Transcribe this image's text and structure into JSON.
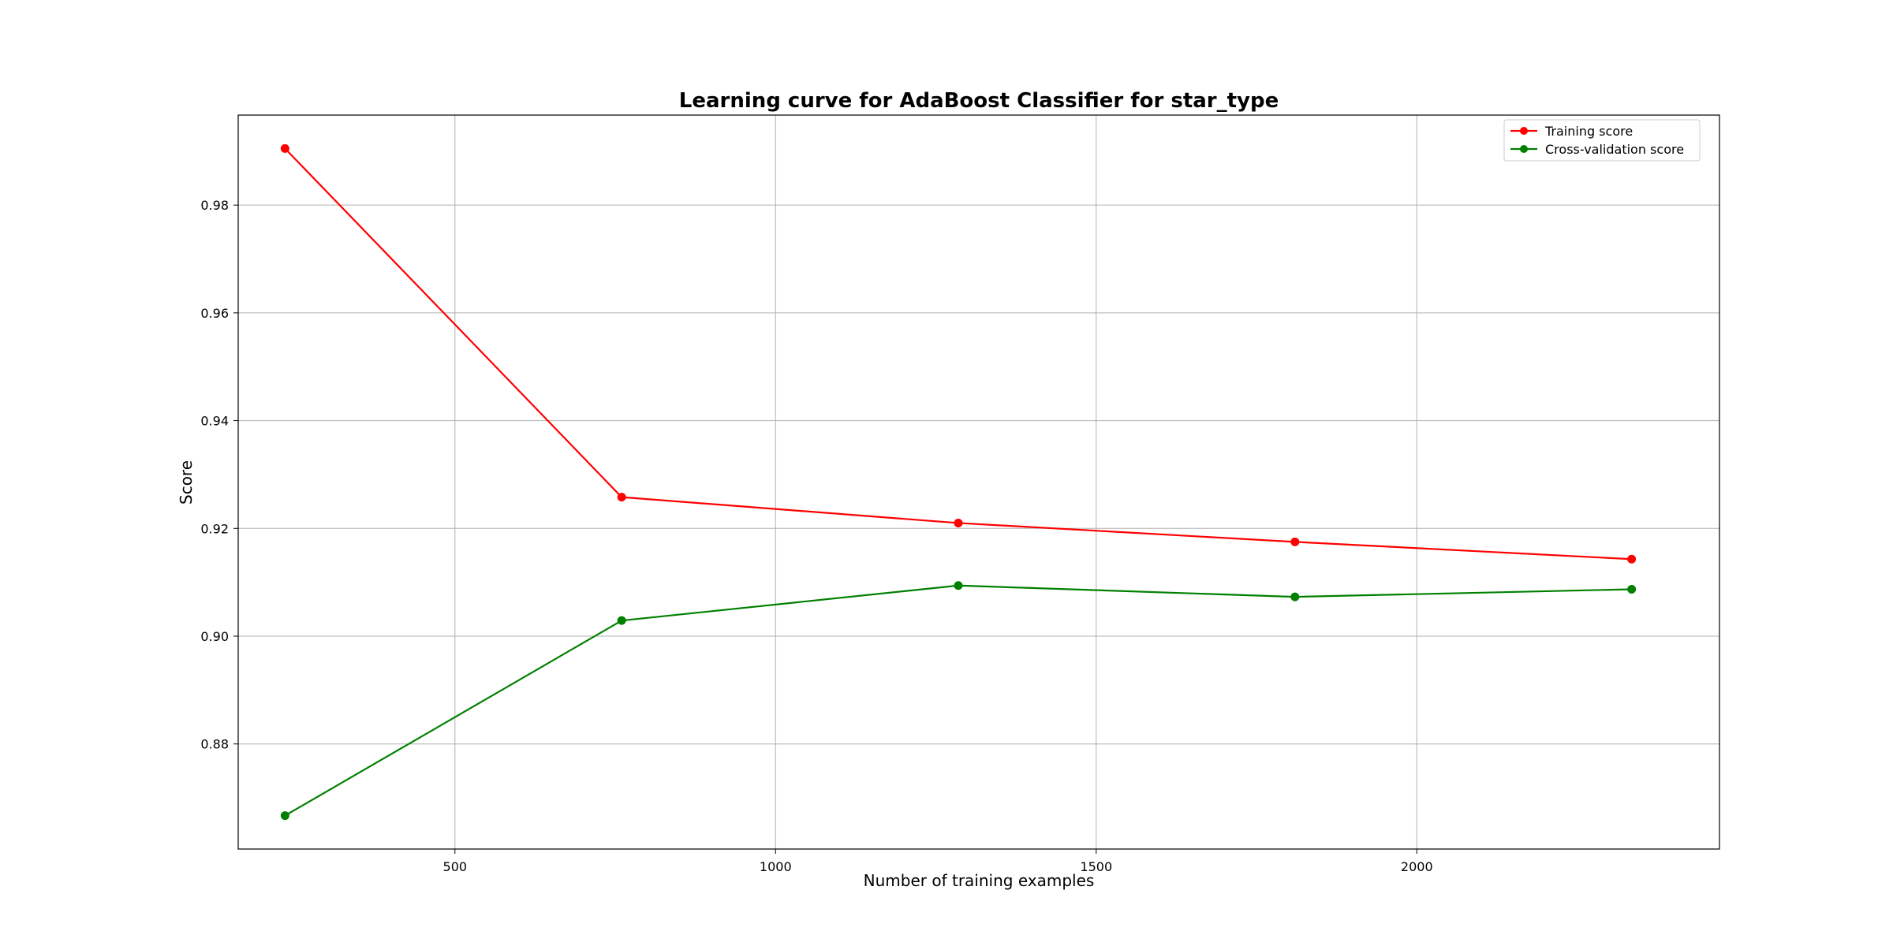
{
  "chart_data": {
    "type": "line",
    "title": "Learning curve for AdaBoost Classifier for star_type",
    "xlabel": "Number of training examples",
    "ylabel": "Score",
    "x": [
      235,
      760,
      1285,
      1810,
      2335
    ],
    "series": [
      {
        "name": "Training score",
        "color": "#ff0000",
        "values": [
          0.9905,
          0.9258,
          0.921,
          0.9175,
          0.9143
        ]
      },
      {
        "name": "Cross-validation score",
        "color": "#008000",
        "values": [
          0.8667,
          0.9029,
          0.9094,
          0.9073,
          0.9087
        ]
      }
    ],
    "xlim": [
      162,
      2472
    ],
    "ylim": [
      0.8605,
      0.9967
    ],
    "xticks": [
      500,
      1000,
      1500,
      2000
    ],
    "yticks": [
      0.88,
      0.9,
      0.92,
      0.94,
      0.96,
      0.98
    ],
    "xtick_labels": [
      "500",
      "1000",
      "1500",
      "2000"
    ],
    "ytick_labels": [
      "0.88",
      "0.90",
      "0.92",
      "0.94",
      "0.96",
      "0.98"
    ],
    "grid": true,
    "legend_position": "top-right"
  }
}
